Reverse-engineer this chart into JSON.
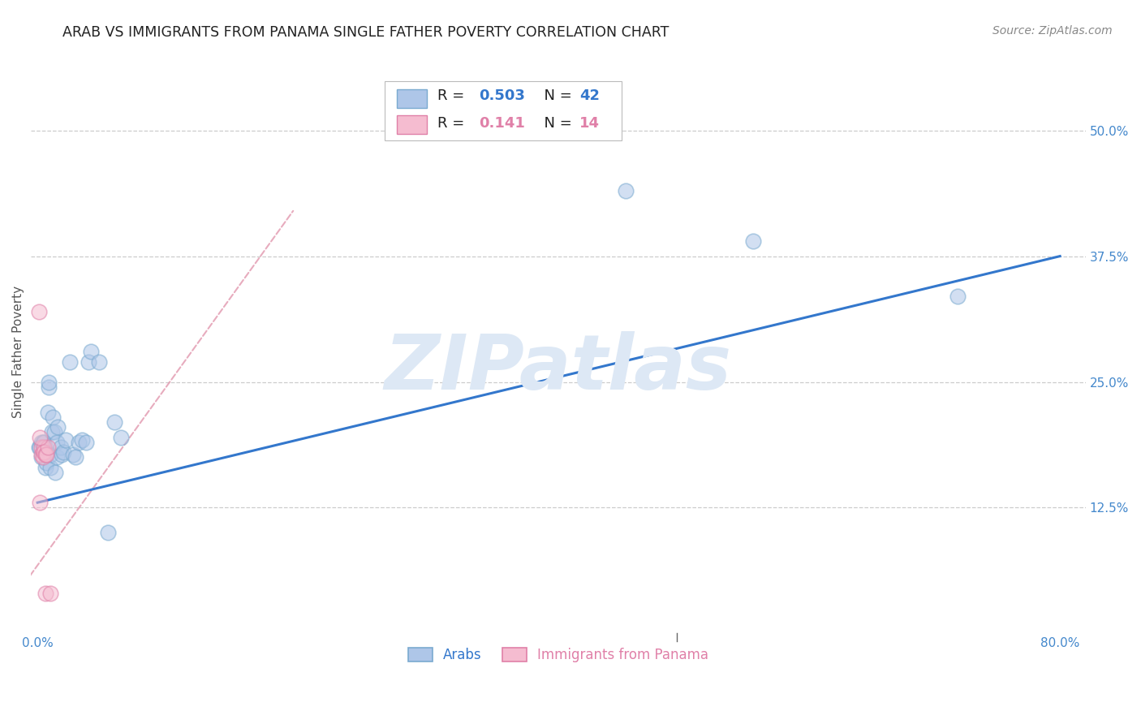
{
  "title": "ARAB VS IMMIGRANTS FROM PANAMA SINGLE FATHER POVERTY CORRELATION CHART",
  "source": "Source: ZipAtlas.com",
  "ylabel": "Single Father Poverty",
  "background_color": "#ffffff",
  "title_color": "#222222",
  "source_color": "#888888",
  "arab_color": "#aec6e8",
  "arab_edge_color": "#7aaad0",
  "panama_color": "#f5bcd0",
  "panama_edge_color": "#e080a8",
  "arab_R": "0.503",
  "arab_N": "42",
  "panama_R": "0.141",
  "panama_N": "14",
  "arab_x": [
    0.001,
    0.002,
    0.003,
    0.003,
    0.004,
    0.005,
    0.005,
    0.006,
    0.006,
    0.007,
    0.007,
    0.008,
    0.009,
    0.009,
    0.01,
    0.01,
    0.011,
    0.012,
    0.013,
    0.014,
    0.015,
    0.015,
    0.016,
    0.018,
    0.019,
    0.02,
    0.022,
    0.025,
    0.028,
    0.03,
    0.032,
    0.035,
    0.038,
    0.04,
    0.042,
    0.048,
    0.055,
    0.06,
    0.065,
    0.46,
    0.56,
    0.72
  ],
  "arab_y": [
    0.185,
    0.185,
    0.19,
    0.175,
    0.19,
    0.18,
    0.19,
    0.185,
    0.165,
    0.18,
    0.17,
    0.22,
    0.245,
    0.25,
    0.165,
    0.178,
    0.2,
    0.215,
    0.2,
    0.16,
    0.175,
    0.19,
    0.205,
    0.185,
    0.178,
    0.18,
    0.192,
    0.27,
    0.178,
    0.175,
    0.19,
    0.192,
    0.19,
    0.27,
    0.28,
    0.27,
    0.1,
    0.21,
    0.195,
    0.44,
    0.39,
    0.335
  ],
  "panama_x": [
    0.001,
    0.002,
    0.003,
    0.003,
    0.004,
    0.004,
    0.005,
    0.005,
    0.006,
    0.006,
    0.007,
    0.008,
    0.01,
    0.002
  ],
  "panama_y": [
    0.32,
    0.13,
    0.178,
    0.185,
    0.18,
    0.175,
    0.185,
    0.18,
    0.04,
    0.178,
    0.178,
    0.185,
    0.04,
    0.195
  ],
  "blue_line_x": [
    0.0,
    0.8
  ],
  "blue_line_y": [
    0.13,
    0.375
  ],
  "pink_line_x": [
    -0.01,
    0.2
  ],
  "pink_line_y": [
    0.05,
    0.42
  ],
  "watermark_text": "ZIPatlas",
  "watermark_color": "#dde8f5",
  "xlim": [
    -0.005,
    0.82
  ],
  "ylim": [
    0.0,
    0.56
  ],
  "ytick_vals": [
    0.125,
    0.25,
    0.375,
    0.5
  ],
  "ytick_labels": [
    "12.5%",
    "25.0%",
    "37.5%",
    "50.0%"
  ],
  "xtick_vals": [
    0.0,
    0.5,
    0.8
  ],
  "xtick_labels": [
    "0.0%",
    "",
    "80.0%"
  ],
  "grid_color": "#cccccc",
  "axis_tick_color": "#4488cc",
  "marker_size": 180,
  "marker_alpha": 0.55,
  "marker_lw": 1.2
}
